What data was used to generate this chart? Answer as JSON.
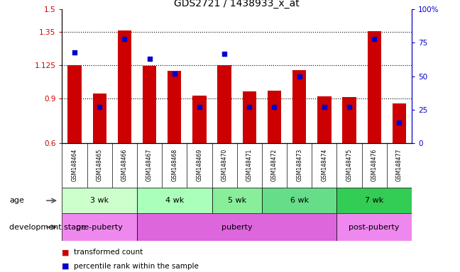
{
  "title": "GDS2721 / 1438933_x_at",
  "samples": [
    "GSM148464",
    "GSM148465",
    "GSM148466",
    "GSM148467",
    "GSM148468",
    "GSM148469",
    "GSM148470",
    "GSM148471",
    "GSM148472",
    "GSM148473",
    "GSM148474",
    "GSM148475",
    "GSM148476",
    "GSM148477"
  ],
  "transformed_count": [
    1.125,
    0.935,
    1.36,
    1.12,
    1.085,
    0.92,
    1.125,
    0.945,
    0.95,
    1.09,
    0.915,
    0.91,
    1.355,
    0.865
  ],
  "percentile_rank": [
    68,
    27,
    78,
    63,
    52,
    27,
    67,
    27,
    27,
    50,
    27,
    27,
    78,
    15
  ],
  "ylim_left": [
    0.6,
    1.5
  ],
  "ylim_right": [
    0,
    100
  ],
  "yticks_left": [
    0.6,
    0.9,
    1.125,
    1.35,
    1.5
  ],
  "ytick_labels_left": [
    "0.6",
    "0.9",
    "1.125",
    "1.35",
    "1.5"
  ],
  "yticks_right": [
    0,
    25,
    50,
    75,
    100
  ],
  "ytick_labels_right": [
    "0",
    "25",
    "50",
    "75",
    "100%"
  ],
  "hlines": [
    0.9,
    1.125,
    1.35
  ],
  "bar_color": "#cc0000",
  "dot_color": "#0000cc",
  "bar_bottom": 0.6,
  "age_groups": [
    {
      "label": "3 wk",
      "start": 0,
      "end": 3,
      "color": "#ccffcc"
    },
    {
      "label": "4 wk",
      "start": 3,
      "end": 6,
      "color": "#aaffbb"
    },
    {
      "label": "5 wk",
      "start": 6,
      "end": 8,
      "color": "#88ee99"
    },
    {
      "label": "6 wk",
      "start": 8,
      "end": 11,
      "color": "#66dd88"
    },
    {
      "label": "7 wk",
      "start": 11,
      "end": 14,
      "color": "#33cc55"
    }
  ],
  "dev_groups": [
    {
      "label": "pre-puberty",
      "start": 0,
      "end": 3,
      "color": "#ee88ee"
    },
    {
      "label": "puberty",
      "start": 3,
      "end": 11,
      "color": "#dd66dd"
    },
    {
      "label": "post-puberty",
      "start": 11,
      "end": 14,
      "color": "#ee88ee"
    }
  ],
  "legend_bar_label": "transformed count",
  "legend_dot_label": "percentile rank within the sample",
  "age_label": "age",
  "dev_label": "development stage",
  "axis_color_left": "#cc0000",
  "axis_color_right": "#0000cc",
  "sample_area_color": "#d8d8d8",
  "n_samples": 14
}
